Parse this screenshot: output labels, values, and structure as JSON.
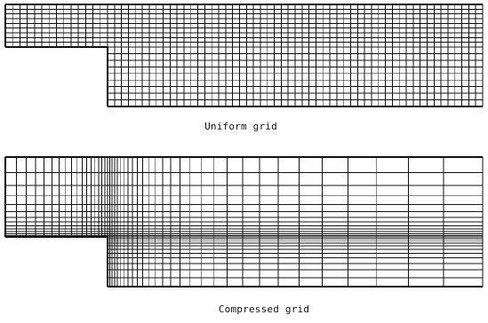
{
  "panels": [
    {
      "caption": "Uniform grid",
      "grid_type": "uniform",
      "x_lines_upstream": 15,
      "x_lines_downstream": 55,
      "y_lines_channel": 10,
      "y_lines_step": 10
    },
    {
      "caption": "Compressed grid",
      "grid_type": "compressed",
      "x_lines_upstream": 18,
      "x_lines_downstream": 30,
      "y_lines_channel": 14,
      "y_lines_step": 12
    }
  ],
  "colors": {
    "line": "#111111",
    "background": "#ffffff"
  }
}
